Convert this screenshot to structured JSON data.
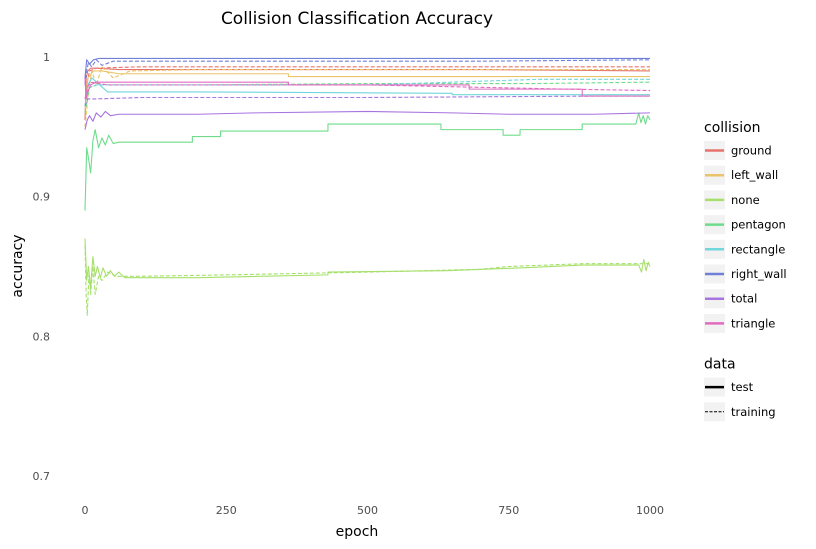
{
  "chart_data": {
    "type": "line",
    "title": "Collision Classification Accuracy",
    "xlabel": "epoch",
    "ylabel": "accuracy",
    "xlim": [
      0,
      1000
    ],
    "ylim": [
      0.69,
      1.0
    ],
    "x_ticks": [
      0,
      250,
      500,
      750,
      1000
    ],
    "y_ticks": [
      0.7,
      0.8,
      0.9,
      1.0
    ],
    "x_tick_labels": [
      "0",
      "250",
      "500",
      "750",
      "1000"
    ],
    "y_tick_labels": [
      "0.7",
      "0.8",
      "0.9",
      "1"
    ],
    "grid": false,
    "legend_placement": "right",
    "legends": [
      {
        "title": "collision",
        "key": "color",
        "entries": [
          {
            "label": "ground",
            "color": "#e8736c"
          },
          {
            "label": "left_wall",
            "color": "#e9c46a"
          },
          {
            "label": "none",
            "color": "#a6e06a"
          },
          {
            "label": "pentagon",
            "color": "#6edc8a"
          },
          {
            "label": "rectangle",
            "color": "#72d6dc"
          },
          {
            "label": "right_wall",
            "color": "#7080d8"
          },
          {
            "label": "total",
            "color": "#a874e0"
          },
          {
            "label": "triangle",
            "color": "#e06cc0"
          }
        ]
      },
      {
        "title": "data",
        "key": "linetype",
        "entries": [
          {
            "label": "test",
            "dash": "solid"
          },
          {
            "label": "training",
            "dash": "dashed"
          }
        ]
      }
    ],
    "series": [
      {
        "collision": "ground",
        "data": "test",
        "color": "#e8736c",
        "dash": "solid",
        "points": [
          [
            0,
            0.955
          ],
          [
            2,
            0.985
          ],
          [
            5,
            0.99
          ],
          [
            10,
            0.992
          ],
          [
            20,
            0.992
          ],
          [
            60,
            0.991
          ],
          [
            100,
            0.991
          ],
          [
            400,
            0.991
          ],
          [
            700,
            0.991
          ],
          [
            1000,
            0.99
          ]
        ]
      },
      {
        "collision": "ground",
        "data": "training",
        "color": "#e8736c",
        "dash": "dashed",
        "points": [
          [
            0,
            0.96
          ],
          [
            3,
            0.98
          ],
          [
            8,
            0.99
          ],
          [
            20,
            0.992
          ],
          [
            100,
            0.993
          ],
          [
            500,
            0.993
          ],
          [
            1000,
            0.993
          ]
        ]
      },
      {
        "collision": "left_wall",
        "data": "test",
        "color": "#e9c46a",
        "dash": "solid",
        "points": [
          [
            0,
            0.96
          ],
          [
            5,
            0.985
          ],
          [
            15,
            0.99
          ],
          [
            30,
            0.99
          ],
          [
            60,
            0.988
          ],
          [
            360,
            0.988
          ],
          [
            360,
            0.986
          ],
          [
            1000,
            0.986
          ]
        ]
      },
      {
        "collision": "left_wall",
        "data": "training",
        "color": "#e9c46a",
        "dash": "dashed",
        "points": [
          [
            0,
            0.95
          ],
          [
            6,
            0.975
          ],
          [
            12,
            0.99
          ],
          [
            20,
            0.98
          ],
          [
            30,
            0.993
          ],
          [
            50,
            0.985
          ],
          [
            80,
            0.99
          ],
          [
            200,
            0.991
          ],
          [
            500,
            0.991
          ],
          [
            1000,
            0.991
          ]
        ]
      },
      {
        "collision": "none",
        "data": "test",
        "color": "#a6e06a",
        "dash": "solid",
        "points": [
          [
            0,
            0.87
          ],
          [
            3,
            0.84
          ],
          [
            6,
            0.85
          ],
          [
            10,
            0.835
          ],
          [
            14,
            0.857
          ],
          [
            18,
            0.843
          ],
          [
            22,
            0.85
          ],
          [
            27,
            0.842
          ],
          [
            32,
            0.849
          ],
          [
            38,
            0.843
          ],
          [
            45,
            0.847
          ],
          [
            52,
            0.843
          ],
          [
            60,
            0.846
          ],
          [
            70,
            0.842
          ],
          [
            200,
            0.842
          ],
          [
            430,
            0.844
          ],
          [
            430,
            0.846
          ],
          [
            640,
            0.847
          ],
          [
            770,
            0.849
          ],
          [
            880,
            0.851
          ],
          [
            980,
            0.851
          ],
          [
            985,
            0.846
          ],
          [
            989,
            0.855
          ],
          [
            993,
            0.847
          ],
          [
            997,
            0.853
          ],
          [
            1000,
            0.85
          ]
        ]
      },
      {
        "collision": "none",
        "data": "training",
        "color": "#a6e06a",
        "dash": "dashed",
        "points": [
          [
            0,
            0.865
          ],
          [
            2,
            0.83
          ],
          [
            4,
            0.815
          ],
          [
            7,
            0.845
          ],
          [
            10,
            0.83
          ],
          [
            14,
            0.85
          ],
          [
            18,
            0.83
          ],
          [
            24,
            0.843
          ],
          [
            30,
            0.84
          ],
          [
            40,
            0.846
          ],
          [
            55,
            0.843
          ],
          [
            100,
            0.843
          ],
          [
            250,
            0.844
          ],
          [
            500,
            0.846
          ],
          [
            700,
            0.848
          ],
          [
            750,
            0.85
          ],
          [
            880,
            0.852
          ],
          [
            1000,
            0.852
          ]
        ]
      },
      {
        "collision": "pentagon",
        "data": "test",
        "color": "#6edc8a",
        "dash": "solid",
        "points": [
          [
            0,
            0.89
          ],
          [
            3,
            0.935
          ],
          [
            6,
            0.928
          ],
          [
            10,
            0.917
          ],
          [
            14,
            0.94
          ],
          [
            18,
            0.948
          ],
          [
            24,
            0.935
          ],
          [
            30,
            0.942
          ],
          [
            36,
            0.937
          ],
          [
            42,
            0.944
          ],
          [
            50,
            0.938
          ],
          [
            60,
            0.939
          ],
          [
            190,
            0.939
          ],
          [
            190,
            0.943
          ],
          [
            240,
            0.943
          ],
          [
            240,
            0.947
          ],
          [
            430,
            0.947
          ],
          [
            430,
            0.952
          ],
          [
            630,
            0.952
          ],
          [
            630,
            0.948
          ],
          [
            740,
            0.948
          ],
          [
            740,
            0.944
          ],
          [
            770,
            0.944
          ],
          [
            770,
            0.948
          ],
          [
            880,
            0.948
          ],
          [
            880,
            0.952
          ],
          [
            975,
            0.952
          ],
          [
            980,
            0.96
          ],
          [
            984,
            0.953
          ],
          [
            988,
            0.958
          ],
          [
            992,
            0.952
          ],
          [
            996,
            0.958
          ],
          [
            1000,
            0.955
          ]
        ]
      },
      {
        "collision": "pentagon",
        "data": "training",
        "color": "#6edc8a",
        "dash": "dashed",
        "points": [
          [
            0,
            0.96
          ],
          [
            8,
            0.978
          ],
          [
            20,
            0.98
          ],
          [
            200,
            0.98
          ],
          [
            500,
            0.981
          ],
          [
            800,
            0.981
          ],
          [
            1000,
            0.982
          ]
        ]
      },
      {
        "collision": "rectangle",
        "data": "test",
        "color": "#72d6dc",
        "dash": "solid",
        "points": [
          [
            0,
            0.965
          ],
          [
            5,
            0.98
          ],
          [
            12,
            0.985
          ],
          [
            40,
            0.975
          ],
          [
            200,
            0.975
          ],
          [
            650,
            0.974
          ],
          [
            650,
            0.973
          ],
          [
            1000,
            0.973
          ]
        ]
      },
      {
        "collision": "rectangle",
        "data": "training",
        "color": "#72d6dc",
        "dash": "dashed",
        "points": [
          [
            0,
            0.97
          ],
          [
            6,
            0.978
          ],
          [
            20,
            0.98
          ],
          [
            100,
            0.98
          ],
          [
            500,
            0.98
          ],
          [
            800,
            0.984
          ],
          [
            1000,
            0.984
          ]
        ]
      },
      {
        "collision": "right_wall",
        "data": "test",
        "color": "#7080d8",
        "dash": "solid",
        "points": [
          [
            0,
            0.985
          ],
          [
            3,
            0.998
          ],
          [
            8,
            0.995
          ],
          [
            15,
            0.998
          ],
          [
            25,
            0.999
          ],
          [
            100,
            0.999
          ],
          [
            500,
            0.999
          ],
          [
            1000,
            0.999
          ]
        ]
      },
      {
        "collision": "right_wall",
        "data": "training",
        "color": "#7080d8",
        "dash": "dashed",
        "points": [
          [
            0,
            0.98
          ],
          [
            3,
            0.99
          ],
          [
            6,
            0.996
          ],
          [
            12,
            0.993
          ],
          [
            20,
            0.998
          ],
          [
            30,
            0.994
          ],
          [
            50,
            0.997
          ],
          [
            300,
            0.997
          ],
          [
            700,
            0.997
          ],
          [
            1000,
            0.998
          ]
        ]
      },
      {
        "collision": "total",
        "data": "test",
        "color": "#a874e0",
        "dash": "solid",
        "points": [
          [
            0,
            0.948
          ],
          [
            4,
            0.955
          ],
          [
            8,
            0.958
          ],
          [
            14,
            0.954
          ],
          [
            20,
            0.96
          ],
          [
            28,
            0.957
          ],
          [
            36,
            0.961
          ],
          [
            45,
            0.958
          ],
          [
            60,
            0.959
          ],
          [
            200,
            0.959
          ],
          [
            300,
            0.96
          ],
          [
            500,
            0.961
          ],
          [
            650,
            0.96
          ],
          [
            750,
            0.959
          ],
          [
            900,
            0.959
          ],
          [
            1000,
            0.96
          ]
        ]
      },
      {
        "collision": "total",
        "data": "training",
        "color": "#a874e0",
        "dash": "dashed",
        "points": [
          [
            0,
            0.965
          ],
          [
            5,
            0.97
          ],
          [
            20,
            0.97
          ],
          [
            100,
            0.971
          ],
          [
            500,
            0.971
          ],
          [
            900,
            0.972
          ],
          [
            1000,
            0.972
          ]
        ]
      },
      {
        "collision": "triangle",
        "data": "test",
        "color": "#e06cc0",
        "dash": "solid",
        "points": [
          [
            0,
            0.985
          ],
          [
            2,
            0.97
          ],
          [
            5,
            0.975
          ],
          [
            10,
            0.98
          ],
          [
            20,
            0.982
          ],
          [
            80,
            0.982
          ],
          [
            360,
            0.982
          ],
          [
            360,
            0.98
          ],
          [
            680,
            0.98
          ],
          [
            680,
            0.977
          ],
          [
            880,
            0.977
          ],
          [
            880,
            0.972
          ],
          [
            1000,
            0.972
          ]
        ]
      },
      {
        "collision": "triangle",
        "data": "training",
        "color": "#e06cc0",
        "dash": "dashed",
        "points": [
          [
            0,
            0.97
          ],
          [
            4,
            0.978
          ],
          [
            10,
            0.982
          ],
          [
            40,
            0.98
          ],
          [
            200,
            0.98
          ],
          [
            500,
            0.98
          ],
          [
            850,
            0.977
          ],
          [
            1000,
            0.976
          ]
        ]
      }
    ]
  }
}
